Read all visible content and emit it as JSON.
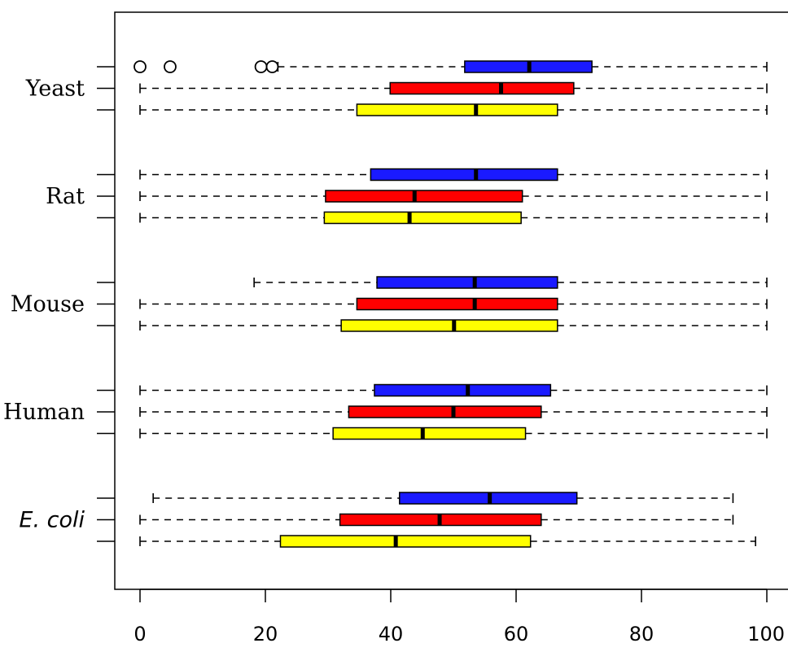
{
  "chart_data": {
    "type": "boxplot",
    "orientation": "horizontal",
    "xlim": [
      0,
      100
    ],
    "x_ticks": [
      "0",
      "20",
      "40",
      "60",
      "80",
      "100"
    ],
    "grid": false,
    "colors": [
      "#1a1aff",
      "#ff0000",
      "#ffff00"
    ],
    "groups": [
      {
        "label": "Yeast",
        "italic": false,
        "boxes": [
          {
            "color": "#1a1aff",
            "min": 22,
            "q1": 51.8,
            "median": 62.1,
            "q3": 72.1,
            "max": 100,
            "outliers": [
              0,
              4.8,
              19.3,
              21.1
            ]
          },
          {
            "color": "#ff0000",
            "min": 0,
            "q1": 39.9,
            "median": 57.6,
            "q3": 69.2,
            "max": 100,
            "outliers": []
          },
          {
            "color": "#ffff00",
            "min": 0,
            "q1": 34.6,
            "median": 53.6,
            "q3": 66.6,
            "max": 100,
            "outliers": []
          }
        ]
      },
      {
        "label": "Rat",
        "italic": false,
        "boxes": [
          {
            "color": "#1a1aff",
            "min": 0,
            "q1": 36.8,
            "median": 53.6,
            "q3": 66.6,
            "max": 100,
            "outliers": []
          },
          {
            "color": "#ff0000",
            "min": 0,
            "q1": 29.6,
            "median": 43.8,
            "q3": 61.0,
            "max": 100,
            "outliers": []
          },
          {
            "color": "#ffff00",
            "min": 0,
            "q1": 29.4,
            "median": 43.0,
            "q3": 60.8,
            "max": 100,
            "outliers": []
          }
        ]
      },
      {
        "label": "Mouse",
        "italic": false,
        "boxes": [
          {
            "color": "#1a1aff",
            "min": 18.2,
            "q1": 37.8,
            "median": 53.4,
            "q3": 66.6,
            "max": 100,
            "outliers": []
          },
          {
            "color": "#ff0000",
            "min": 0,
            "q1": 34.6,
            "median": 53.4,
            "q3": 66.6,
            "max": 100,
            "outliers": []
          },
          {
            "color": "#ffff00",
            "min": 0,
            "q1": 32.1,
            "median": 50.1,
            "q3": 66.6,
            "max": 100,
            "outliers": []
          }
        ]
      },
      {
        "label": "Human",
        "italic": false,
        "boxes": [
          {
            "color": "#1a1aff",
            "min": 0,
            "q1": 37.4,
            "median": 52.3,
            "q3": 65.5,
            "max": 100,
            "outliers": []
          },
          {
            "color": "#ff0000",
            "min": 0,
            "q1": 33.3,
            "median": 50.0,
            "q3": 64.0,
            "max": 100,
            "outliers": []
          },
          {
            "color": "#ffff00",
            "min": 0,
            "q1": 30.8,
            "median": 45.1,
            "q3": 61.5,
            "max": 100,
            "outliers": []
          }
        ]
      },
      {
        "label": "E. coli",
        "italic": true,
        "boxes": [
          {
            "color": "#1a1aff",
            "min": 2.1,
            "q1": 41.4,
            "median": 55.8,
            "q3": 69.7,
            "max": 94.6,
            "outliers": []
          },
          {
            "color": "#ff0000",
            "min": 0,
            "q1": 31.9,
            "median": 47.8,
            "q3": 64.0,
            "max": 94.6,
            "outliers": []
          },
          {
            "color": "#ffff00",
            "min": 0,
            "q1": 22.4,
            "median": 40.8,
            "q3": 62.3,
            "max": 98.2,
            "outliers": []
          }
        ]
      }
    ]
  }
}
